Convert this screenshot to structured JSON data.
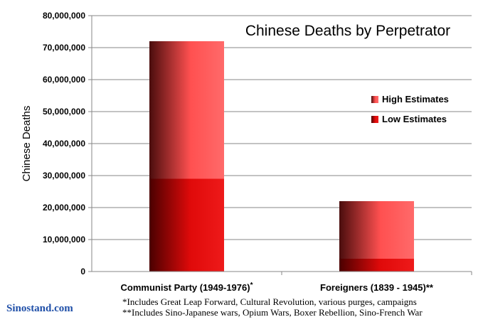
{
  "chart_data": {
    "type": "bar",
    "title": "Chinese Deaths by Perpetrator",
    "ylabel": "Chinese Deaths",
    "xlabel": "",
    "ylim": [
      0,
      80000000
    ],
    "yticks": [
      "0",
      "10,000,000",
      "20,000,000",
      "30,000,000",
      "40,000,000",
      "50,000,000",
      "60,000,000",
      "70,000,000",
      "80,000,000"
    ],
    "categories": [
      "Communist Party (1949-1976)",
      "Foreigners (1839 - 1945)"
    ],
    "category_marks": [
      "*",
      "**"
    ],
    "series": [
      {
        "name": "Low Estimates",
        "values": [
          29000000,
          4000000
        ]
      },
      {
        "name": "High Estimates",
        "values": [
          72000000,
          22000000
        ]
      }
    ],
    "grid": true,
    "legend_position": "right"
  },
  "colors": {
    "high_light": "#ff5a5a",
    "high_dark": "#4a0d0d",
    "low_light": "#e01010",
    "low_dark": "#4a0000",
    "watermark": "#1f4fa8"
  },
  "watermark": "Sinostand.com",
  "footnotes": [
    "*Includes Great Leap Forward, Cultural Revolution, various purges, campaigns",
    "**Includes Sino-Japanese wars, Opium Wars, Boxer Rebellion, Sino-French War"
  ]
}
